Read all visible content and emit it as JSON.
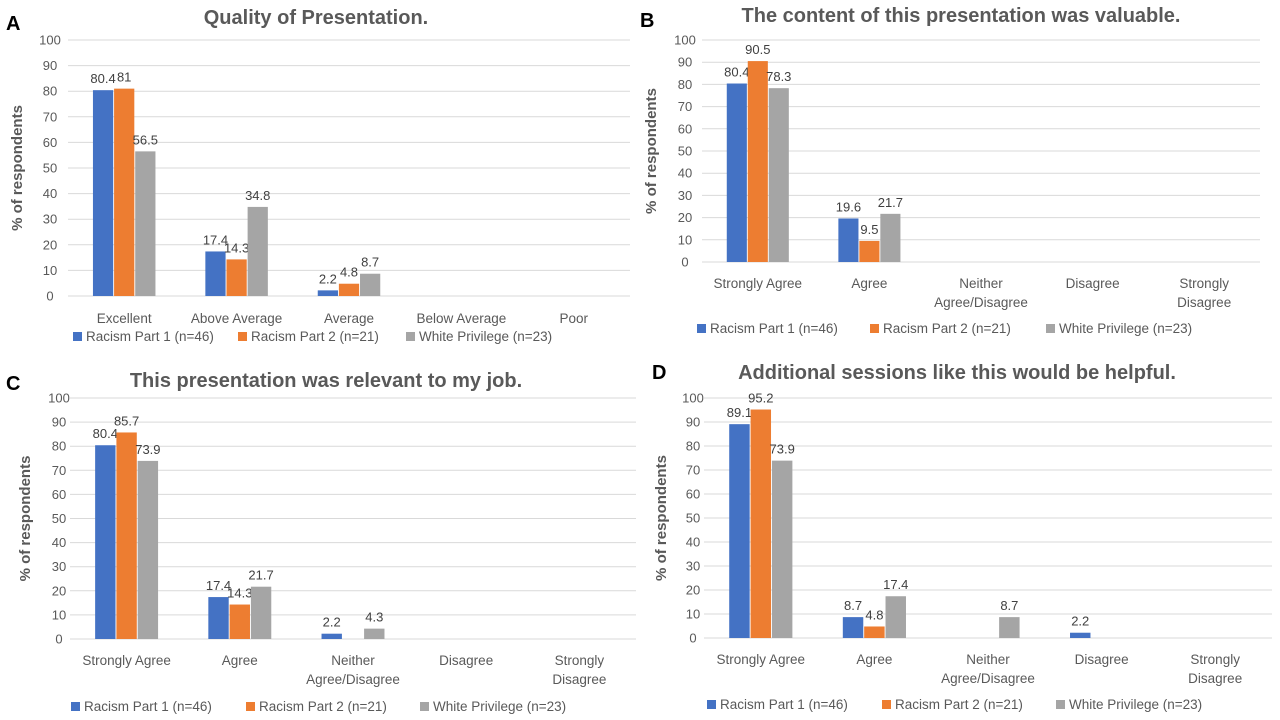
{
  "colors": {
    "series": [
      "#4472c4",
      "#ed7d31",
      "#a5a5a5"
    ]
  },
  "chart_data": [
    {
      "panel": "A",
      "type": "bar",
      "title": "Quality of Presentation.",
      "ylabel": "% of respondents",
      "ylim": [
        0,
        100
      ],
      "yticks": [
        "0",
        "10",
        "20",
        "30",
        "40",
        "50",
        "60",
        "70",
        "80",
        "90",
        "100"
      ],
      "grid": true,
      "legend": "bottom",
      "categories": [
        [
          "Excellent"
        ],
        [
          "Above Average"
        ],
        [
          "Average"
        ],
        [
          "Below Average"
        ],
        [
          "Poor"
        ]
      ],
      "series": [
        {
          "name": "Racism Part 1 (n=46)",
          "values": [
            80.4,
            17.4,
            2.2,
            null,
            null
          ],
          "labels": [
            "80.4",
            "17.4",
            "2.2",
            "",
            ""
          ]
        },
        {
          "name": "Racism Part 2 (n=21)",
          "values": [
            81,
            14.3,
            4.8,
            null,
            null
          ],
          "labels": [
            "81",
            "14.3",
            "4.8",
            "",
            ""
          ]
        },
        {
          "name": "White Privilege (n=23)",
          "values": [
            56.5,
            34.8,
            8.7,
            null,
            null
          ],
          "labels": [
            "56.5",
            "34.8",
            "8.7",
            "",
            ""
          ]
        }
      ]
    },
    {
      "panel": "B",
      "type": "bar",
      "title": "The content of this presentation was valuable.",
      "ylabel": "% of respondents",
      "ylim": [
        0,
        100
      ],
      "yticks": [
        "0",
        "10",
        "20",
        "30",
        "40",
        "50",
        "60",
        "70",
        "80",
        "90",
        "100"
      ],
      "grid": true,
      "legend": "bottom",
      "categories": [
        [
          "Strongly Agree"
        ],
        [
          "Agree"
        ],
        [
          "Neither",
          "Agree/Disagree"
        ],
        [
          "Disagree"
        ],
        [
          "Strongly",
          "Disagree"
        ]
      ],
      "series": [
        {
          "name": "Racism Part 1 (n=46)",
          "values": [
            80.4,
            19.6,
            null,
            null,
            null
          ],
          "labels": [
            "80.4",
            "19.6",
            "",
            "",
            ""
          ]
        },
        {
          "name": "Racism Part 2 (n=21)",
          "values": [
            90.5,
            9.5,
            null,
            null,
            null
          ],
          "labels": [
            "90.5",
            "9.5",
            "",
            "",
            ""
          ]
        },
        {
          "name": "White Privilege (n=23)",
          "values": [
            78.3,
            21.7,
            null,
            null,
            null
          ],
          "labels": [
            "78.3",
            "21.7",
            "",
            "",
            ""
          ]
        }
      ]
    },
    {
      "panel": "C",
      "type": "bar",
      "title": "This presentation was relevant to my job.",
      "ylabel": "% of respondents",
      "ylim": [
        0,
        100
      ],
      "yticks": [
        "0",
        "10",
        "20",
        "30",
        "40",
        "50",
        "60",
        "70",
        "80",
        "90",
        "100"
      ],
      "grid": true,
      "legend": "bottom",
      "categories": [
        [
          "Strongly Agree"
        ],
        [
          "Agree"
        ],
        [
          "Neither",
          "Agree/Disagree"
        ],
        [
          "Disagree"
        ],
        [
          "Strongly",
          "Disagree"
        ]
      ],
      "series": [
        {
          "name": "Racism Part 1 (n=46)",
          "values": [
            80.4,
            17.4,
            2.2,
            null,
            null
          ],
          "labels": [
            "80.4",
            "17.4",
            "2.2",
            "",
            ""
          ]
        },
        {
          "name": "Racism Part 2 (n=21)",
          "values": [
            85.7,
            14.3,
            null,
            null,
            null
          ],
          "labels": [
            "85.7",
            "14.3",
            "",
            "",
            ""
          ]
        },
        {
          "name": "White Privilege (n=23)",
          "values": [
            73.9,
            21.7,
            4.3,
            null,
            null
          ],
          "labels": [
            "73.9",
            "21.7",
            "4.3",
            "",
            ""
          ]
        }
      ]
    },
    {
      "panel": "D",
      "type": "bar",
      "title": "Additional sessions like this would be helpful.",
      "ylabel": "% of respondents",
      "ylim": [
        0,
        100
      ],
      "yticks": [
        "0",
        "10",
        "20",
        "30",
        "40",
        "50",
        "60",
        "70",
        "80",
        "90",
        "100"
      ],
      "grid": true,
      "legend": "bottom",
      "categories": [
        [
          "Strongly Agree"
        ],
        [
          "Agree"
        ],
        [
          "Neither",
          "Agree/Disagree"
        ],
        [
          "Disagree"
        ],
        [
          "Strongly",
          "Disagree"
        ]
      ],
      "series": [
        {
          "name": "Racism Part 1 (n=46)",
          "values": [
            89.1,
            8.7,
            null,
            2.2,
            null
          ],
          "labels": [
            "89.1",
            "8.7",
            "",
            "2.2",
            ""
          ]
        },
        {
          "name": "Racism Part 2 (n=21)",
          "values": [
            95.2,
            4.8,
            null,
            null,
            null
          ],
          "labels": [
            "95.2",
            "4.8",
            "",
            "",
            ""
          ]
        },
        {
          "name": "White Privilege (n=23)",
          "values": [
            73.9,
            17.4,
            8.7,
            null,
            null
          ],
          "labels": [
            "73.9",
            "17.4",
            "8.7",
            "",
            ""
          ]
        }
      ]
    }
  ]
}
